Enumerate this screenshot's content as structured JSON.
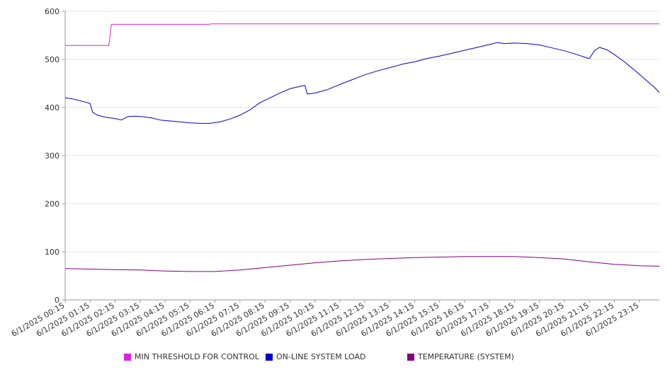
{
  "chart_data": {
    "type": "line",
    "title": "",
    "xlabel": "",
    "ylabel": "",
    "ylim": [
      0,
      600
    ],
    "yticks": [
      0,
      100,
      200,
      300,
      400,
      500,
      600
    ],
    "grid": true,
    "legend_position": "bottom",
    "x": [
      "6/1/2025 00:15",
      "6/1/2025 01:15",
      "6/1/2025 02:15",
      "6/1/2025 03:15",
      "6/1/2025 04:15",
      "6/1/2025 05:15",
      "6/1/2025 06:15",
      "6/1/2025 07:15",
      "6/1/2025 08:15",
      "6/1/2025 09:15",
      "6/1/2025 10:15",
      "6/1/2025 11:15",
      "6/1/2025 12:15",
      "6/1/2025 13:15",
      "6/1/2025 14:15",
      "6/1/2025 15:15",
      "6/1/2025 16:15",
      "6/1/2025 17:15",
      "6/1/2025 18:15",
      "6/1/2025 19:15",
      "6/1/2025 20:15",
      "6/1/2025 21:15",
      "6/1/2025 22:15",
      "6/1/2025 23:15"
    ],
    "series": [
      {
        "name": "MIN THRESHOLD FOR CONTROL",
        "color": "#e020e0",
        "points": [
          [
            0,
            529
          ],
          [
            1.75,
            529
          ],
          [
            1.85,
            573
          ],
          [
            5.8,
            573
          ],
          [
            5.82,
            574
          ],
          [
            23.8,
            574
          ]
        ]
      },
      {
        "name": "ON-LINE SYSTEM LOAD",
        "color": "#0000cc",
        "points": [
          [
            0,
            420
          ],
          [
            0.3,
            418
          ],
          [
            0.6,
            414
          ],
          [
            0.9,
            410
          ],
          [
            1.0,
            408
          ],
          [
            1.1,
            390
          ],
          [
            1.3,
            384
          ],
          [
            1.6,
            380
          ],
          [
            2.0,
            377
          ],
          [
            2.25,
            374
          ],
          [
            2.5,
            381
          ],
          [
            2.8,
            382
          ],
          [
            3.1,
            381
          ],
          [
            3.5,
            378
          ],
          [
            3.8,
            374
          ],
          [
            4.2,
            372
          ],
          [
            4.6,
            370
          ],
          [
            5.0,
            368
          ],
          [
            5.4,
            367
          ],
          [
            5.8,
            367
          ],
          [
            6.2,
            370
          ],
          [
            6.6,
            376
          ],
          [
            7.0,
            384
          ],
          [
            7.4,
            395
          ],
          [
            7.8,
            410
          ],
          [
            8.2,
            420
          ],
          [
            8.6,
            430
          ],
          [
            9.0,
            439
          ],
          [
            9.4,
            444
          ],
          [
            9.6,
            446
          ],
          [
            9.7,
            428
          ],
          [
            10.0,
            430
          ],
          [
            10.5,
            437
          ],
          [
            11.0,
            448
          ],
          [
            11.5,
            458
          ],
          [
            12.0,
            468
          ],
          [
            12.5,
            476
          ],
          [
            13.0,
            483
          ],
          [
            13.5,
            490
          ],
          [
            14.0,
            495
          ],
          [
            14.5,
            502
          ],
          [
            15.0,
            507
          ],
          [
            15.5,
            513
          ],
          [
            16.0,
            519
          ],
          [
            16.5,
            525
          ],
          [
            17.0,
            531
          ],
          [
            17.3,
            535
          ],
          [
            17.6,
            533
          ],
          [
            18.0,
            534
          ],
          [
            18.5,
            533
          ],
          [
            19.0,
            530
          ],
          [
            19.5,
            524
          ],
          [
            20.0,
            518
          ],
          [
            20.5,
            510
          ],
          [
            20.9,
            503
          ],
          [
            21.0,
            502
          ],
          [
            21.2,
            518
          ],
          [
            21.4,
            525
          ],
          [
            21.7,
            520
          ],
          [
            22.0,
            510
          ],
          [
            22.4,
            495
          ],
          [
            22.8,
            478
          ],
          [
            23.2,
            460
          ],
          [
            23.6,
            442
          ],
          [
            23.8,
            431
          ]
        ]
      },
      {
        "name": "TEMPERATURE (SYSTEM)",
        "color": "#800080",
        "points": [
          [
            0,
            65
          ],
          [
            1,
            64
          ],
          [
            2,
            63
          ],
          [
            3,
            62
          ],
          [
            4,
            60
          ],
          [
            5,
            59
          ],
          [
            6,
            59
          ],
          [
            7,
            62
          ],
          [
            8,
            67
          ],
          [
            9,
            72
          ],
          [
            10,
            77
          ],
          [
            11,
            81
          ],
          [
            12,
            84
          ],
          [
            13,
            86
          ],
          [
            14,
            88
          ],
          [
            15,
            89
          ],
          [
            16,
            90
          ],
          [
            17,
            90
          ],
          [
            18,
            90
          ],
          [
            19,
            88
          ],
          [
            20,
            85
          ],
          [
            21,
            79
          ],
          [
            22,
            74
          ],
          [
            23,
            71
          ],
          [
            23.8,
            70
          ]
        ]
      }
    ]
  }
}
